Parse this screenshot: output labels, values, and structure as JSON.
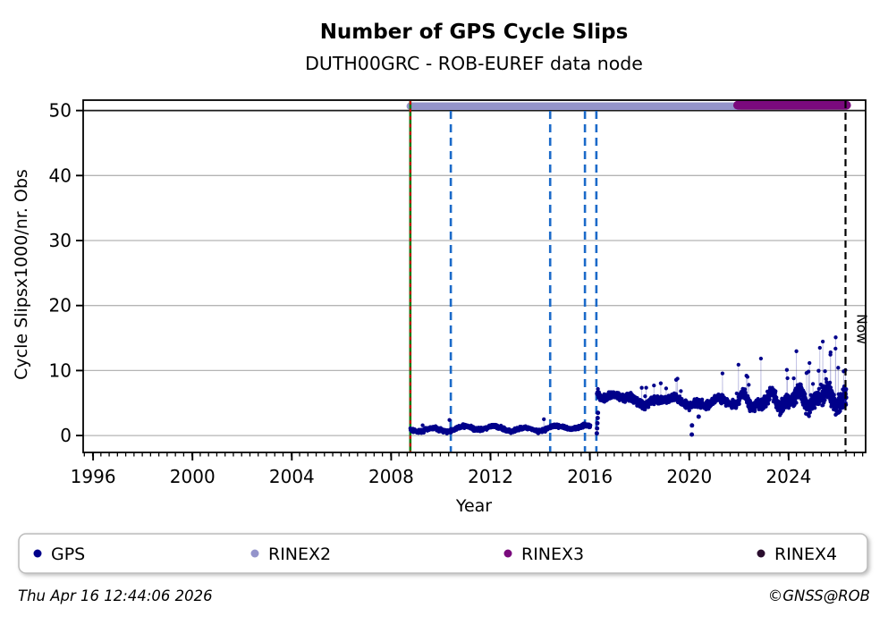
{
  "header": {
    "title": "Number of GPS Cycle Slips",
    "subtitle": "DUTH00GRC - ROB-EUREF data node"
  },
  "footer": {
    "timestamp": "Thu Apr 16 12:44:06 2026",
    "copyright": "©GNSS@ROB"
  },
  "legend": {
    "items": [
      {
        "label": "GPS",
        "color": "#00008b"
      },
      {
        "label": "RINEX2",
        "color": "#9494cb"
      },
      {
        "label": "RINEX3",
        "color": "#7a0a7d"
      },
      {
        "label": "RINEX4",
        "color": "#2a0d2e"
      }
    ]
  },
  "chart_data": {
    "type": "scatter",
    "title": "Number of GPS Cycle Slips",
    "subtitle": "DUTH00GRC - ROB-EUREF data node",
    "xlabel": "Year",
    "ylabel": "Cycle Slipsx1000/nr. Obs",
    "xlim": [
      1995.6,
      2027.1
    ],
    "ylim": [
      -2.6,
      51.6
    ],
    "xticks_major": [
      1996,
      2000,
      2004,
      2008,
      2012,
      2016,
      2020,
      2024
    ],
    "xtick_minor_step": 0.33333,
    "yticks": [
      0,
      10,
      20,
      30,
      40,
      50
    ],
    "grid": {
      "horizontal": true,
      "color": "#b4b4b4",
      "dark_line_value": 50
    },
    "now_line": {
      "x": 2026.29,
      "label": "Now",
      "color": "#000000",
      "style": "dashed"
    },
    "event_lines": [
      {
        "name": "data-start-green",
        "x": 2008.77,
        "color": "#0b7d0b",
        "style": "solid"
      },
      {
        "name": "data-start-red",
        "x": 2008.77,
        "color": "#d40000",
        "style": "dashed"
      },
      {
        "name": "event-blue-1",
        "x": 2010.4,
        "color": "#1b6ac9",
        "style": "dashed"
      },
      {
        "name": "event-blue-2",
        "x": 2014.4,
        "color": "#1b6ac9",
        "style": "dashed"
      },
      {
        "name": "event-blue-3",
        "x": 2015.8,
        "color": "#1b6ac9",
        "style": "dashed"
      },
      {
        "name": "event-blue-4",
        "x": 2016.26,
        "color": "#1b6ac9",
        "style": "dashed"
      }
    ],
    "availability_bars": [
      {
        "name": "RINEX2",
        "start": 2008.77,
        "end": 2022.0,
        "color": "#9494cb"
      },
      {
        "name": "RINEX3",
        "start": 2021.95,
        "end": 2026.33,
        "color": "#7a0a7d"
      }
    ],
    "series": [
      {
        "name": "GPS",
        "color": "#00008b",
        "stem_color": "rgba(35,35,160,0.32)",
        "seed": 42,
        "segments": [
          {
            "start": 2008.77,
            "end": 2016.02,
            "step": 0.008,
            "base": 1.0,
            "trend": 0.02,
            "w1a": 0.3,
            "w1f": 5.1,
            "w2a": 0.18,
            "w2f": 1.7,
            "noise": 0.42,
            "min": 0.12,
            "spikeP": 0.006,
            "spikeMin": 0.8,
            "spikeMax": 1.9
          },
          {
            "start": 2016.28,
            "end": 2021.93,
            "step": 0.006,
            "base": 5.7,
            "trend": -0.14,
            "boost": 1.6,
            "w1a": 0.5,
            "w1f": 3.1,
            "w2a": 0.3,
            "w2f": 7.3,
            "noise": 0.85,
            "min": 2.5,
            "spikeP": 0.012,
            "spikeMin": 1.2,
            "spikeMax": 3.6
          },
          {
            "start": 2021.95,
            "end": 2026.33,
            "step": 0.005,
            "base": 5.1,
            "trend": 0.18,
            "w1a": 0.9,
            "w1f": 5.6,
            "w2a": 0.5,
            "w2f": 11.0,
            "noise": 1.05,
            "noiseGrowth": 0.32,
            "min": 2.2,
            "spikeP": 0.012,
            "spikePGrowth": 0.006,
            "spikeMin": 2.5,
            "spikeMax": 9.0
          }
        ],
        "outliers": [
          [
            2016.28,
            0.35
          ],
          [
            2016.29,
            1.1
          ],
          [
            2016.3,
            1.9
          ],
          [
            2016.31,
            2.7
          ],
          [
            2016.32,
            3.5
          ],
          [
            2020.1,
            0.15
          ],
          [
            2020.11,
            1.55
          ],
          [
            2020.38,
            2.9
          ]
        ],
        "value_cap": 17.6
      }
    ]
  }
}
